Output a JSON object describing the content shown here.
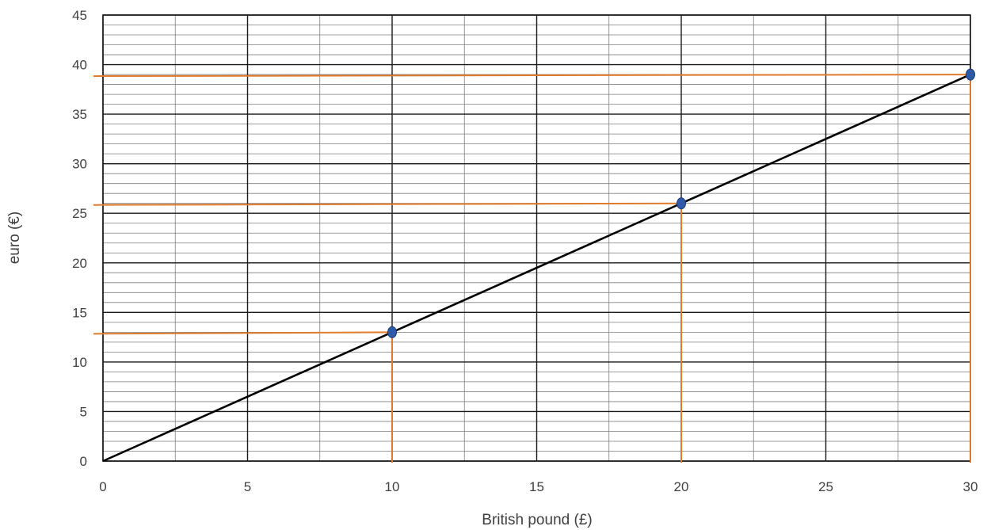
{
  "chart_data": {
    "type": "line",
    "xlabel": "British pound (£)",
    "ylabel": "euro (€)",
    "xlim": [
      0,
      30
    ],
    "ylim": [
      0,
      45
    ],
    "x_ticks": [
      0,
      5,
      10,
      15,
      20,
      25,
      30
    ],
    "y_ticks": [
      0,
      5,
      10,
      15,
      20,
      25,
      30,
      35,
      40,
      45
    ],
    "grid": true,
    "minor_grid": {
      "x_step": 2.5,
      "y_step": 1
    },
    "series": [
      {
        "x": [
          0,
          30
        ],
        "y": [
          0,
          39
        ],
        "color": "#000000"
      }
    ],
    "points": [
      {
        "x": 10,
        "y": 13
      },
      {
        "x": 20,
        "y": 26
      },
      {
        "x": 30,
        "y": 39
      }
    ],
    "guide_color": "#e07b2c",
    "point_color": "#2e5aa8"
  }
}
